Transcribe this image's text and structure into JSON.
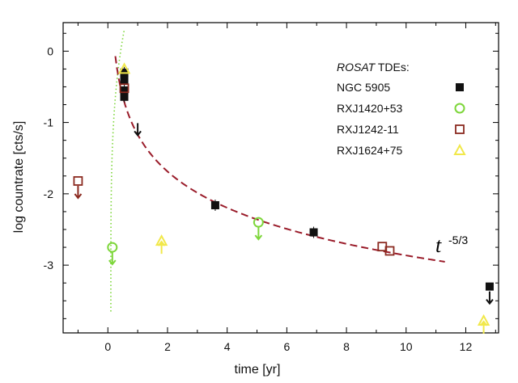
{
  "chart_data": {
    "type": "scatter",
    "xlabel": "time [yr]",
    "ylabel": "log countrate [cts/s]",
    "xlim": [
      -1.5,
      13.1
    ],
    "ylim": [
      -3.95,
      0.4
    ],
    "xticks": [
      0,
      2,
      4,
      6,
      8,
      10,
      12
    ],
    "yticks": [
      0,
      -1,
      -2,
      -3
    ],
    "legend_title_italic": "ROSAT",
    "legend_title_rest": " TDEs:",
    "legend_position": "top-right",
    "annotation_base": "t",
    "annotation_exp": "-5/3",
    "series": [
      {
        "name": "NGC 5905",
        "color": "#111111",
        "marker": "square-filled",
        "points": [
          {
            "x": 0.55,
            "y": -0.3
          },
          {
            "x": 0.55,
            "y": -0.4
          },
          {
            "x": 0.55,
            "y": -0.55
          },
          {
            "x": 0.55,
            "y": -0.64
          },
          {
            "x": 3.6,
            "y": -2.16
          },
          {
            "x": 6.9,
            "y": -2.54
          }
        ],
        "upper_limits": [
          {
            "x": 1.0,
            "y": -1.1
          },
          {
            "x": 12.8,
            "y": -3.3
          }
        ]
      },
      {
        "name": "RXJ1420+53",
        "color": "#7dd63a",
        "marker": "circle-open",
        "points": [],
        "upper_limits": [
          {
            "x": 0.15,
            "y": -2.75
          },
          {
            "x": 5.05,
            "y": -2.4
          }
        ]
      },
      {
        "name": "RXJ1242-11",
        "color": "#8b2a20",
        "marker": "square-open",
        "points": [
          {
            "x": 0.55,
            "y": -0.52
          },
          {
            "x": 9.2,
            "y": -2.74
          },
          {
            "x": 9.45,
            "y": -2.8
          }
        ],
        "upper_limits": [
          {
            "x": -1.0,
            "y": -1.82
          }
        ]
      },
      {
        "name": "RXJ1624+75",
        "color": "#f1e84a",
        "marker": "triangle-open",
        "points": [
          {
            "x": 0.55,
            "y": -0.25
          }
        ],
        "lower_limits": [
          {
            "x": 1.8,
            "y": -2.66
          },
          {
            "x": 12.6,
            "y": -3.78
          }
        ]
      }
    ],
    "fit_curve": {
      "color": "#9a1c2a",
      "style": "dashed",
      "x_start": 0.25,
      "x_end": 11.3
    },
    "rise_curve": {
      "color": "#7dd63a",
      "style": "dotted"
    }
  }
}
